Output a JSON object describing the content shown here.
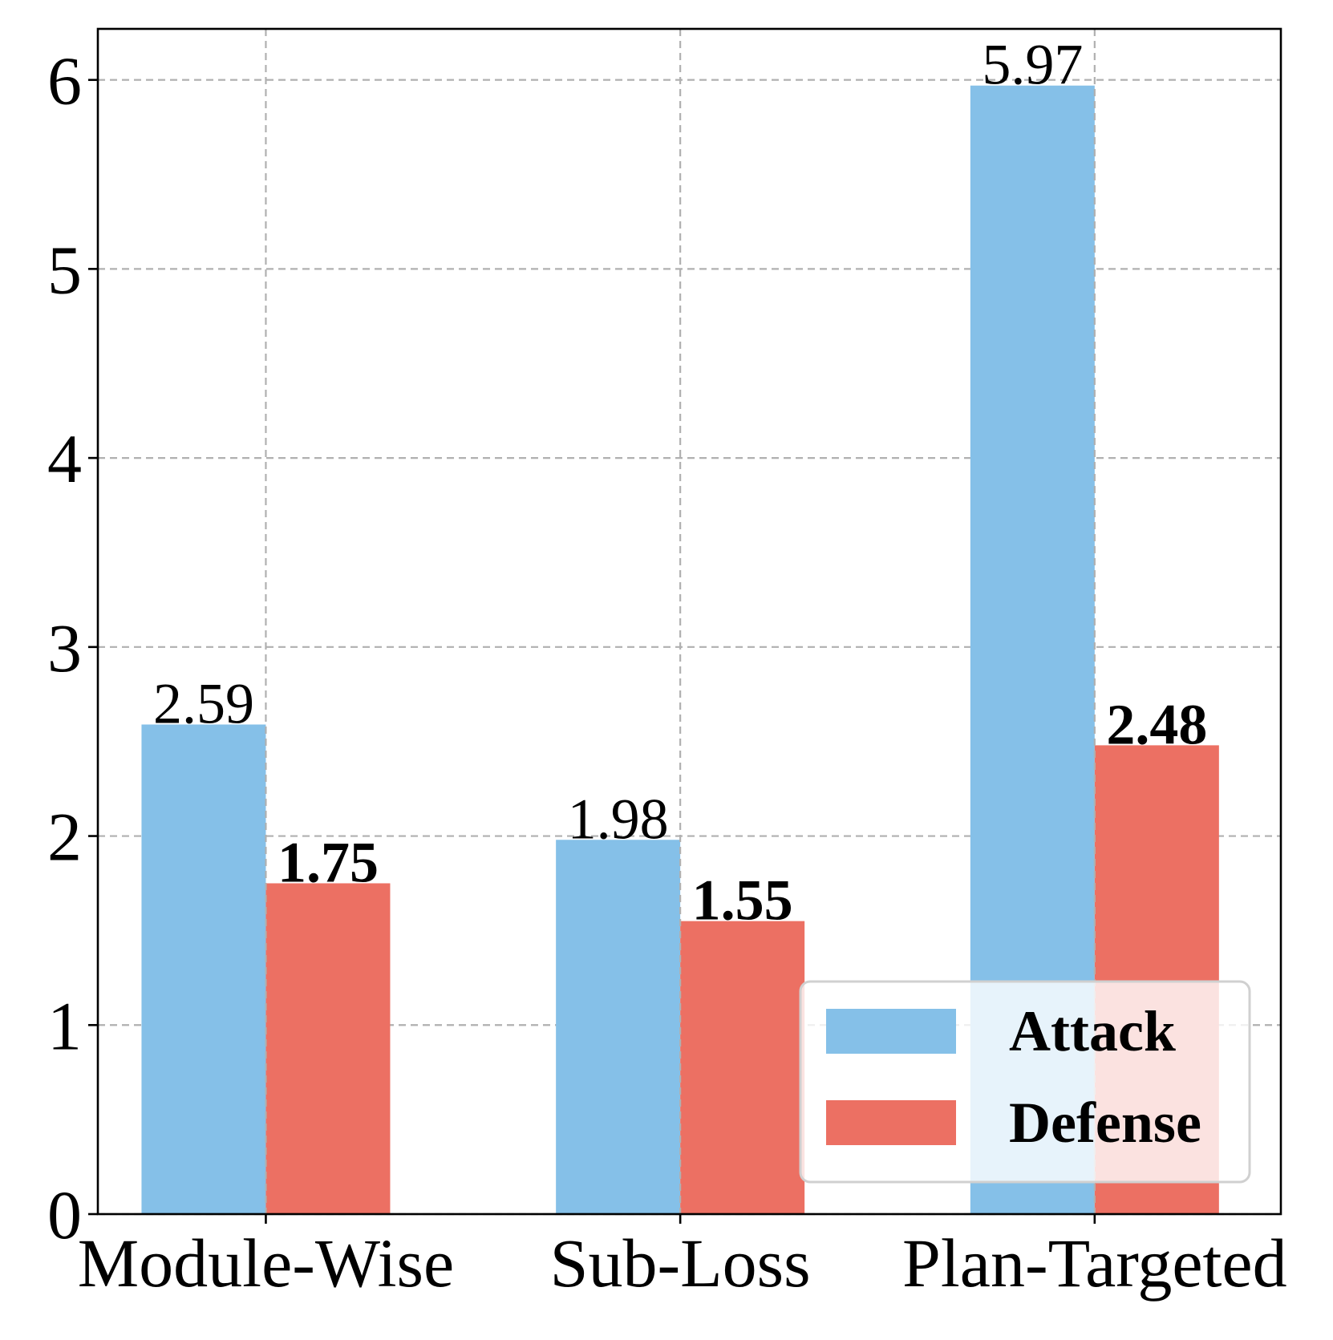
{
  "chart_data": {
    "type": "bar",
    "categories": [
      "Module-Wise",
      "Sub-Loss",
      "Plan-Targeted"
    ],
    "series": [
      {
        "name": "Attack",
        "values": [
          2.59,
          1.98,
          5.97
        ],
        "color": "#85C0E8",
        "label_bold": false
      },
      {
        "name": "Defense",
        "values": [
          1.75,
          1.55,
          2.48
        ],
        "color": "#EC7063",
        "label_bold": true
      }
    ],
    "ylim": [
      0,
      6.27
    ],
    "yticks": [
      0,
      1,
      2,
      3,
      4,
      5,
      6
    ],
    "grid": true,
    "legend_position": "lower-right"
  }
}
